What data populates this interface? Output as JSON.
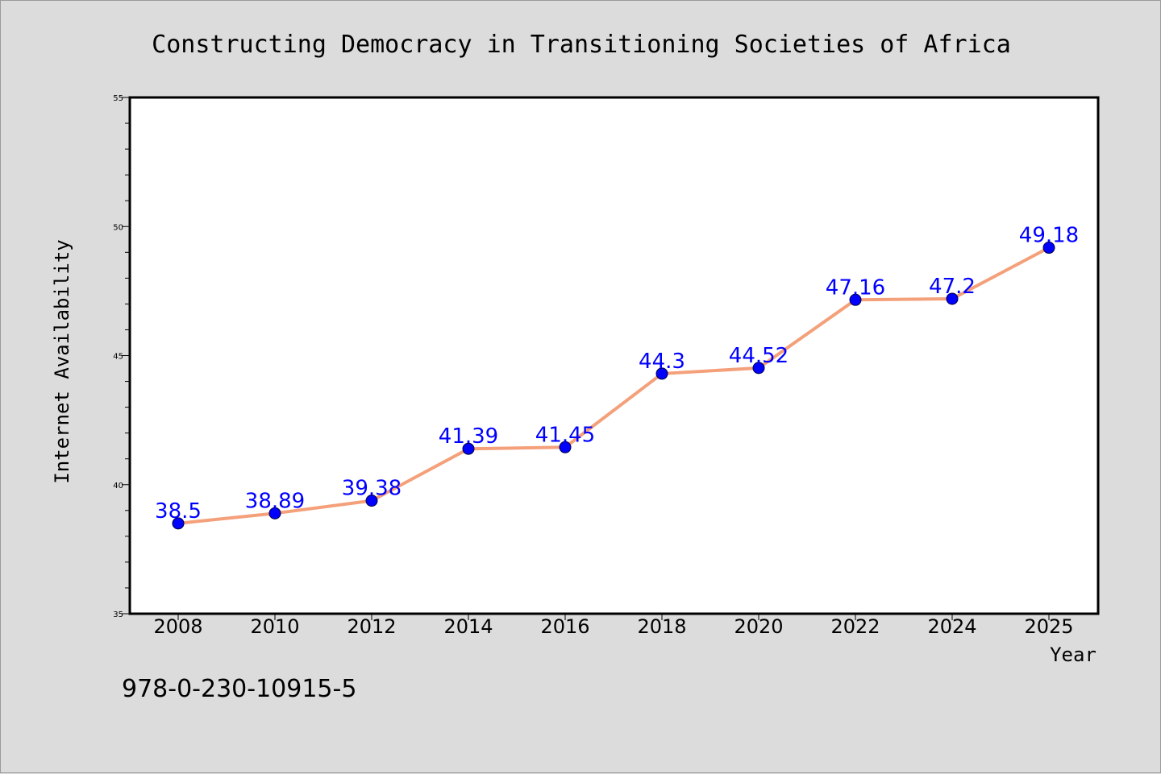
{
  "chart_data": {
    "type": "line",
    "title": "Constructing Democracy in Transitioning Societies of Africa",
    "xlabel": "Year",
    "ylabel": "Internet Availability",
    "categories": [
      "2008",
      "2010",
      "2012",
      "2014",
      "2016",
      "2018",
      "2020",
      "2022",
      "2024",
      "2025"
    ],
    "series": [
      {
        "values": [
          38.5,
          38.89,
          39.38,
          41.39,
          41.45,
          44.3,
          44.52,
          47.16,
          47.2,
          49.18
        ],
        "labels": [
          "38.5",
          "38.89",
          "39.38",
          "41.39",
          "41.45",
          "44.3",
          "44.52",
          "47.16",
          "47.2",
          "49.18"
        ]
      }
    ],
    "ylim": [
      35,
      55
    ],
    "yticks": [
      "35",
      "40",
      "45",
      "50",
      "55"
    ],
    "grid": false,
    "legend": "none",
    "colors": {
      "line": "#f4a07a",
      "marker": "#0000ff",
      "label": "#0000ff",
      "background": "#dcdcdc",
      "plot_area": "#ffffff"
    }
  },
  "footer": {
    "isbn": "978-0-230-10915-5"
  }
}
